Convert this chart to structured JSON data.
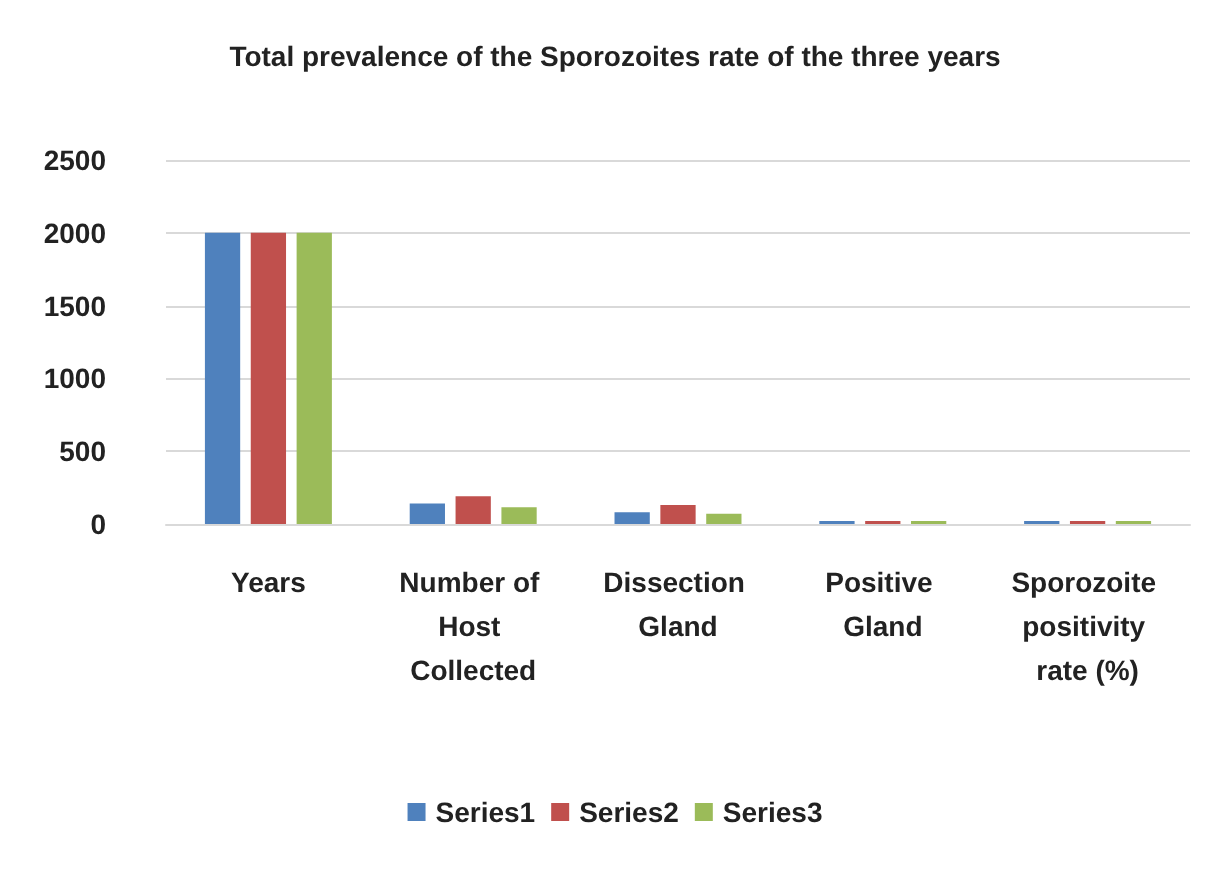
{
  "chart_data": {
    "type": "bar",
    "title": "Total prevalence of the Sporozoites rate of the three years",
    "categories": [
      "Years",
      "Number of Host Collected",
      "Dissection Gland",
      "Positive Gland",
      "Sporozoite positivity rate (%)"
    ],
    "series": [
      {
        "name": "Series1",
        "color": "#4f81bd",
        "values": [
          2000,
          140,
          80,
          20,
          20
        ]
      },
      {
        "name": "Series2",
        "color": "#c0504d",
        "values": [
          2000,
          190,
          130,
          20,
          20
        ]
      },
      {
        "name": "Series3",
        "color": "#9bbb59",
        "values": [
          2000,
          115,
          70,
          20,
          20
        ]
      }
    ],
    "ylim": [
      0,
      2500
    ],
    "yticks": [
      0,
      500,
      1000,
      1500,
      2000,
      2500
    ],
    "grid": "y",
    "legend": "bottom"
  }
}
